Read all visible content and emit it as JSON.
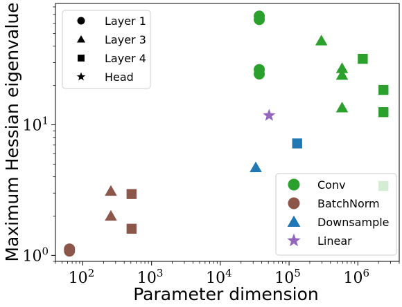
{
  "chart_data": {
    "type": "scatter",
    "xlabel": "Parameter dimension",
    "ylabel": "Maximum Hessian eigenvalue",
    "xscale": "log",
    "yscale": "log",
    "xlim": [
      40,
      4000000
    ],
    "ylim": [
      0.9,
      85
    ],
    "x_ticks": [
      {
        "value": 100,
        "base": "10",
        "exp": "2"
      },
      {
        "value": 1000,
        "base": "10",
        "exp": "3"
      },
      {
        "value": 10000,
        "base": "10",
        "exp": "4"
      },
      {
        "value": 100000,
        "base": "10",
        "exp": "5"
      },
      {
        "value": 1000000,
        "base": "10",
        "exp": "6"
      }
    ],
    "y_ticks": [
      {
        "value": 1,
        "base": "10",
        "exp": "0"
      },
      {
        "value": 10,
        "base": "10",
        "exp": "1"
      }
    ],
    "colors": {
      "Conv": "#2ca02c",
      "BatchNorm": "#8c564b",
      "Downsample": "#1f77b4",
      "Linear": "#9467bd"
    },
    "marker_legend": {
      "placement": "upper-left",
      "entries": [
        {
          "label": "Layer 1",
          "marker": "circle"
        },
        {
          "label": "Layer 3",
          "marker": "triangle"
        },
        {
          "label": "Layer 4",
          "marker": "square"
        },
        {
          "label": "Head",
          "marker": "star"
        }
      ]
    },
    "color_legend": {
      "placement": "lower-right",
      "entries": [
        {
          "label": "Conv",
          "type": "Conv"
        },
        {
          "label": "BatchNorm",
          "type": "BatchNorm"
        },
        {
          "label": "Downsample",
          "type": "Downsample"
        },
        {
          "label": "Linear",
          "type": "Linear"
        }
      ]
    },
    "series": [
      {
        "type": "Conv",
        "marker": "circle",
        "x": 36864,
        "y": 68
      },
      {
        "type": "Conv",
        "marker": "circle",
        "x": 36864,
        "y": 64
      },
      {
        "type": "Conv",
        "marker": "circle",
        "x": 36864,
        "y": 26.5
      },
      {
        "type": "Conv",
        "marker": "circle",
        "x": 36864,
        "y": 24.5
      },
      {
        "type": "Conv",
        "marker": "triangle",
        "x": 294912,
        "y": 44
      },
      {
        "type": "Conv",
        "marker": "triangle",
        "x": 589824,
        "y": 27
      },
      {
        "type": "Conv",
        "marker": "triangle",
        "x": 589824,
        "y": 24
      },
      {
        "type": "Conv",
        "marker": "triangle",
        "x": 589824,
        "y": 13.5
      },
      {
        "type": "Conv",
        "marker": "square",
        "x": 1179648,
        "y": 32
      },
      {
        "type": "Conv",
        "marker": "square",
        "x": 2359296,
        "y": 18.5
      },
      {
        "type": "Conv",
        "marker": "square",
        "x": 2359296,
        "y": 12.5
      },
      {
        "type": "Conv",
        "marker": "square",
        "x": 2359296,
        "y": 3.4
      },
      {
        "type": "BatchNorm",
        "marker": "circle",
        "x": 64,
        "y": 1.12
      },
      {
        "type": "BatchNorm",
        "marker": "circle",
        "x": 64,
        "y": 1.08
      },
      {
        "type": "BatchNorm",
        "marker": "triangle",
        "x": 256,
        "y": 3.1
      },
      {
        "type": "BatchNorm",
        "marker": "triangle",
        "x": 256,
        "y": 2.0
      },
      {
        "type": "BatchNorm",
        "marker": "square",
        "x": 512,
        "y": 2.95
      },
      {
        "type": "BatchNorm",
        "marker": "square",
        "x": 512,
        "y": 1.6
      },
      {
        "type": "Downsample",
        "marker": "triangle",
        "x": 32768,
        "y": 4.7
      },
      {
        "type": "Downsample",
        "marker": "square",
        "x": 131072,
        "y": 7.2
      },
      {
        "type": "Linear",
        "marker": "star",
        "x": 51300,
        "y": 11.8
      }
    ]
  }
}
